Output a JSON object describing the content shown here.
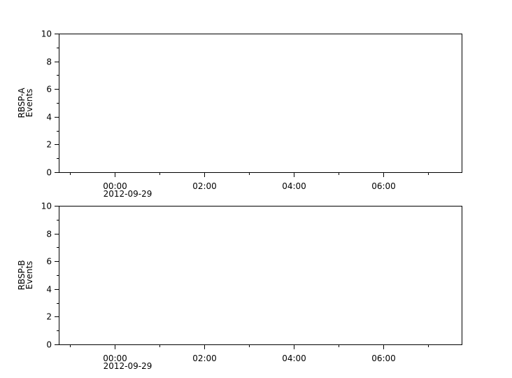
{
  "chart_data": [
    {
      "type": "line",
      "ylabel": [
        "RBSP-A",
        "Events"
      ],
      "ylim": [
        0,
        10
      ],
      "yticks": [
        "0",
        "2",
        "4",
        "6",
        "8",
        "10"
      ],
      "xlim_hours": [
        -1.25,
        7.75
      ],
      "xticks": [
        {
          "hour": 0,
          "label": "00:00",
          "sublabel": "2012-09-29"
        },
        {
          "hour": 2,
          "label": "02:00"
        },
        {
          "hour": 4,
          "label": "04:00"
        },
        {
          "hour": 6,
          "label": "06:00"
        }
      ],
      "minor_x_hours": [
        -1,
        1,
        3,
        5,
        7
      ],
      "series": []
    },
    {
      "type": "line",
      "ylabel": [
        "RBSP-B",
        "Events"
      ],
      "ylim": [
        0,
        10
      ],
      "yticks": [
        "0",
        "2",
        "4",
        "6",
        "8",
        "10"
      ],
      "xlim_hours": [
        -1.25,
        7.75
      ],
      "xticks": [
        {
          "hour": 0,
          "label": "00:00",
          "sublabel": "2012-09-29"
        },
        {
          "hour": 2,
          "label": "02:00"
        },
        {
          "hour": 4,
          "label": "04:00"
        },
        {
          "hour": 6,
          "label": "06:00"
        }
      ],
      "minor_x_hours": [
        -1,
        1,
        3,
        5,
        7
      ],
      "series": []
    }
  ]
}
